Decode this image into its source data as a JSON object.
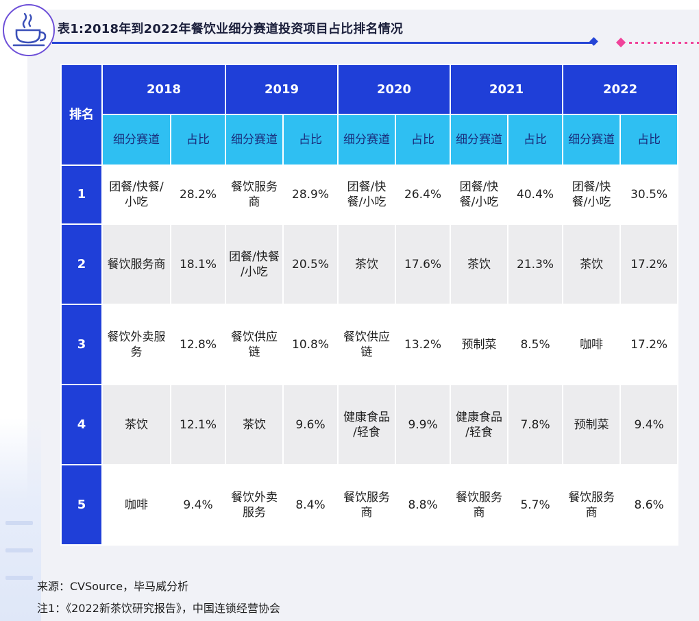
{
  "title": "表1:2018年到2022年餐饮业细分赛道投资项目占比排名情况",
  "icons": {
    "logo": "coffee-cup-icon"
  },
  "colors": {
    "header_blue": "#1f3fd8",
    "subheader_cyan": "#2fbff2",
    "accent_pink": "#f0439a"
  },
  "table": {
    "rank_header": "排名",
    "years": [
      "2018",
      "2019",
      "2020",
      "2021",
      "2022"
    ],
    "sub_headers": [
      "细分赛道",
      "占比"
    ],
    "rows": [
      {
        "rank": "1",
        "cells": [
          {
            "track": "团餐/快餐/\n小吃",
            "share": "28.2%"
          },
          {
            "track": "餐饮服务\n商",
            "share": "28.9%"
          },
          {
            "track": "团餐/快\n餐/小吃",
            "share": "26.4%"
          },
          {
            "track": "团餐/快\n餐/小吃",
            "share": "40.4%"
          },
          {
            "track": "团餐/快\n餐/小吃",
            "share": "30.5%"
          }
        ]
      },
      {
        "rank": "2",
        "cells": [
          {
            "track": "餐饮服务商",
            "share": "18.1%"
          },
          {
            "track": "团餐/快餐\n/小吃",
            "share": "20.5%"
          },
          {
            "track": "茶饮",
            "share": "17.6%"
          },
          {
            "track": "茶饮",
            "share": "21.3%"
          },
          {
            "track": "茶饮",
            "share": "17.2%"
          }
        ]
      },
      {
        "rank": "3",
        "cells": [
          {
            "track": "餐饮外卖服\n务",
            "share": "12.8%"
          },
          {
            "track": "餐饮供应\n链",
            "share": "10.8%"
          },
          {
            "track": "餐饮供应\n链",
            "share": "13.2%"
          },
          {
            "track": "预制菜",
            "share": "8.5%"
          },
          {
            "track": "咖啡",
            "share": "17.2%"
          }
        ]
      },
      {
        "rank": "4",
        "cells": [
          {
            "track": "茶饮",
            "share": "12.1%"
          },
          {
            "track": "茶饮",
            "share": "9.6%"
          },
          {
            "track": "健康食品\n/轻食",
            "share": "9.9%"
          },
          {
            "track": "健康食品\n/轻食",
            "share": "7.8%"
          },
          {
            "track": "预制菜",
            "share": "9.4%"
          }
        ]
      },
      {
        "rank": "5",
        "cells": [
          {
            "track": "咖啡",
            "share": "9.4%"
          },
          {
            "track": "餐饮外卖\n服务",
            "share": "8.4%"
          },
          {
            "track": "餐饮服务\n商",
            "share": "8.8%"
          },
          {
            "track": "餐饮服务\n商",
            "share": "5.7%"
          },
          {
            "track": "餐饮服务\n商",
            "share": "8.6%"
          }
        ]
      }
    ]
  },
  "footnotes": {
    "source": "来源：CVSource，毕马威分析",
    "note": "注1：《2022新茶饮研究报告》，中国连锁经营协会"
  }
}
